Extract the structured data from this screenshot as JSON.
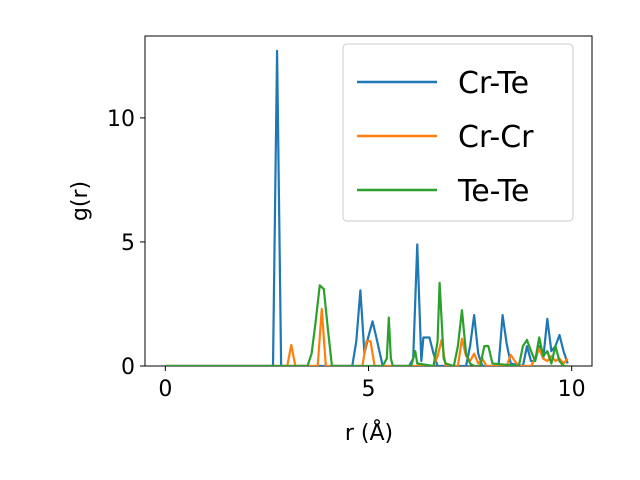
{
  "chart_data": {
    "type": "line",
    "xlabel": "r (Å)",
    "ylabel": "g(r)",
    "xlim": [
      -0.5,
      10.5
    ],
    "ylim": [
      0,
      13.3
    ],
    "xticks": [
      0,
      5,
      10
    ],
    "yticks": [
      0,
      5,
      10
    ],
    "grid": false,
    "legend_position": "top-right",
    "series": [
      {
        "name": "Cr-Te",
        "color": "#1f77b4",
        "points": [
          [
            0,
            0
          ],
          [
            2.6,
            0
          ],
          [
            2.65,
            0
          ],
          [
            2.75,
            12.7
          ],
          [
            2.85,
            0
          ],
          [
            4.6,
            0
          ],
          [
            4.7,
            1.0
          ],
          [
            4.8,
            3.05
          ],
          [
            4.9,
            0.5
          ],
          [
            5.0,
            1.2
          ],
          [
            5.1,
            1.8
          ],
          [
            5.2,
            1.1
          ],
          [
            5.35,
            0
          ],
          [
            6.0,
            0
          ],
          [
            6.1,
            0.3
          ],
          [
            6.2,
            4.9
          ],
          [
            6.3,
            0.2
          ],
          [
            6.35,
            1.15
          ],
          [
            6.5,
            1.15
          ],
          [
            6.6,
            0.5
          ],
          [
            6.7,
            0
          ],
          [
            7.4,
            0
          ],
          [
            7.5,
            0.8
          ],
          [
            7.6,
            2.05
          ],
          [
            7.7,
            0.5
          ],
          [
            7.8,
            0
          ],
          [
            8.2,
            0
          ],
          [
            8.3,
            2.05
          ],
          [
            8.4,
            0.9
          ],
          [
            8.5,
            0.1
          ],
          [
            8.8,
            0
          ],
          [
            8.9,
            0.8
          ],
          [
            9.0,
            0.2
          ],
          [
            9.1,
            0.2
          ],
          [
            9.2,
            0.8
          ],
          [
            9.3,
            0.3
          ],
          [
            9.4,
            1.9
          ],
          [
            9.5,
            0.6
          ],
          [
            9.6,
            0.8
          ],
          [
            9.7,
            1.25
          ],
          [
            9.8,
            0.6
          ],
          [
            9.9,
            0.1
          ]
        ]
      },
      {
        "name": "Cr-Cr",
        "color": "#ff7f0e",
        "points": [
          [
            0,
            0
          ],
          [
            3.0,
            0
          ],
          [
            3.1,
            0.85
          ],
          [
            3.2,
            0
          ],
          [
            3.75,
            0
          ],
          [
            3.85,
            2.3
          ],
          [
            3.95,
            0
          ],
          [
            4.85,
            0
          ],
          [
            4.95,
            1.0
          ],
          [
            5.05,
            1.0
          ],
          [
            5.15,
            0
          ],
          [
            6.6,
            0
          ],
          [
            6.7,
            0.4
          ],
          [
            6.8,
            1.05
          ],
          [
            6.9,
            0
          ],
          [
            7.2,
            0
          ],
          [
            7.3,
            1.1
          ],
          [
            7.4,
            0.4
          ],
          [
            7.5,
            0.2
          ],
          [
            7.6,
            0.5
          ],
          [
            7.7,
            0.1
          ],
          [
            7.8,
            0.3
          ],
          [
            7.9,
            0
          ],
          [
            8.4,
            0
          ],
          [
            8.5,
            0.45
          ],
          [
            8.6,
            0.2
          ],
          [
            8.7,
            0
          ],
          [
            9.0,
            0
          ],
          [
            9.1,
            0.3
          ],
          [
            9.2,
            0.7
          ],
          [
            9.3,
            0.3
          ],
          [
            9.4,
            0.2
          ],
          [
            9.5,
            0.4
          ],
          [
            9.6,
            0.2
          ],
          [
            9.7,
            0.3
          ],
          [
            9.8,
            0.1
          ],
          [
            9.9,
            0.3
          ]
        ]
      },
      {
        "name": "Te-Te",
        "color": "#2ca02c",
        "points": [
          [
            0,
            0
          ],
          [
            3.5,
            0
          ],
          [
            3.6,
            0.5
          ],
          [
            3.7,
            1.8
          ],
          [
            3.8,
            3.25
          ],
          [
            3.9,
            3.1
          ],
          [
            4.0,
            1.5
          ],
          [
            4.1,
            0
          ],
          [
            5.35,
            0
          ],
          [
            5.45,
            0.3
          ],
          [
            5.5,
            1.95
          ],
          [
            5.55,
            0.3
          ],
          [
            5.6,
            0
          ],
          [
            6.05,
            0
          ],
          [
            6.15,
            0.6
          ],
          [
            6.2,
            0.1
          ],
          [
            6.6,
            0
          ],
          [
            6.7,
            1.0
          ],
          [
            6.75,
            3.35
          ],
          [
            6.85,
            0.3
          ],
          [
            6.9,
            0.1
          ],
          [
            7.1,
            0
          ],
          [
            7.2,
            0.8
          ],
          [
            7.3,
            2.25
          ],
          [
            7.4,
            0.5
          ],
          [
            7.5,
            0.1
          ],
          [
            7.6,
            0
          ],
          [
            7.75,
            0
          ],
          [
            7.85,
            0.8
          ],
          [
            7.95,
            0.8
          ],
          [
            8.05,
            0.1
          ],
          [
            8.7,
            0
          ],
          [
            8.8,
            0.8
          ],
          [
            8.9,
            1.05
          ],
          [
            9.0,
            0.6
          ],
          [
            9.1,
            0.2
          ],
          [
            9.2,
            1.15
          ],
          [
            9.3,
            0.4
          ],
          [
            9.4,
            0.6
          ],
          [
            9.5,
            0.1
          ],
          [
            9.6,
            0.8
          ],
          [
            9.7,
            0.2
          ],
          [
            9.8,
            0
          ],
          [
            9.9,
            0
          ]
        ]
      }
    ]
  }
}
